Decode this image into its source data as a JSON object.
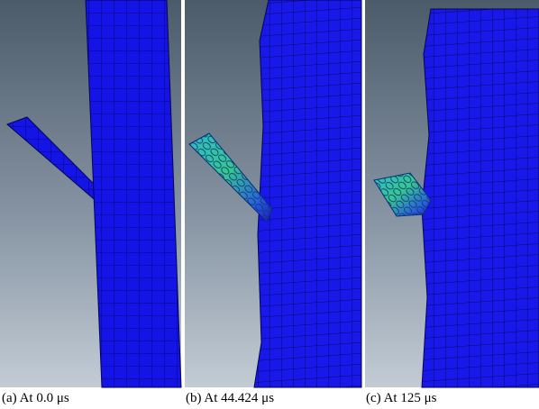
{
  "panels": [
    {
      "caption": "(a) At 0.0 μs"
    },
    {
      "caption": "(b) At 44.424 μs"
    },
    {
      "caption": "(c) At 125 μs"
    }
  ]
}
